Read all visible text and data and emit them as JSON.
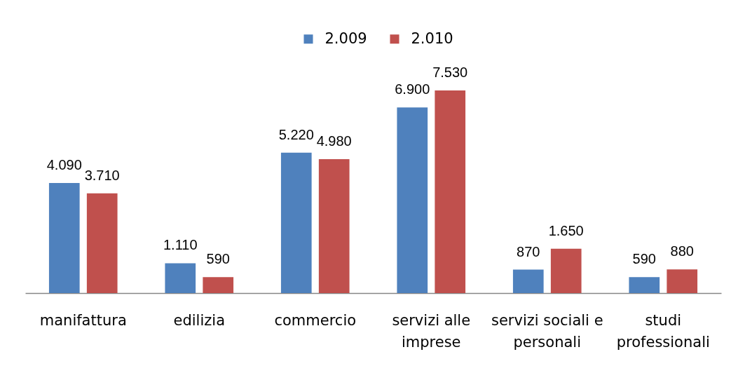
{
  "chart_data": {
    "type": "bar",
    "categories": [
      "manifattura",
      "edilizia",
      "commercio",
      "servizi alle imprese",
      "servizi sociali e personali",
      "studi professionali"
    ],
    "series": [
      {
        "name": "2.009",
        "color": "#4f81bd",
        "values": [
          4090,
          1110,
          5220,
          6900,
          870,
          590
        ],
        "value_labels": [
          "4.090",
          "1.110",
          "5.220",
          "6.900",
          "870",
          "590"
        ]
      },
      {
        "name": "2.010",
        "color": "#c0504d",
        "values": [
          3710,
          590,
          4980,
          7530,
          1650,
          880
        ],
        "value_labels": [
          "3.710",
          "590",
          "4.980",
          "7.530",
          "1.650",
          "880"
        ]
      }
    ],
    "legend": "top",
    "tick_labels": "x"
  }
}
